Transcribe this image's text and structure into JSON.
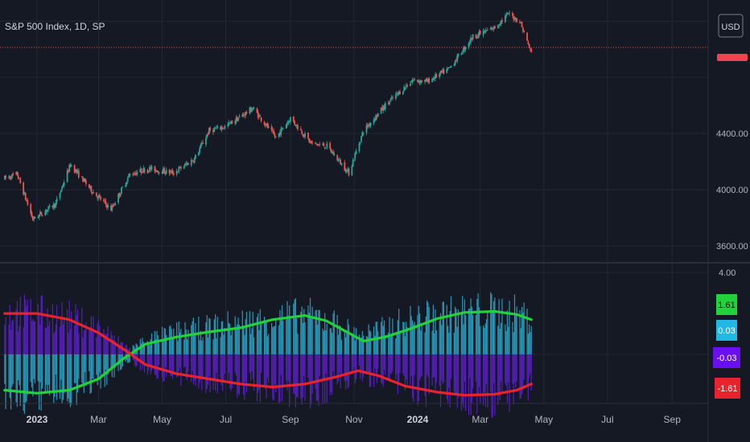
{
  "header": {
    "symbol_title": "S&P 500 Index, 1D, SP"
  },
  "currency_button": "USD",
  "colors": {
    "background": "#151924",
    "grid": "#242833",
    "up": "#26a69a",
    "down": "#ef5350",
    "green_line": "#22d23a",
    "red_line": "#e8232d",
    "cyan_bar": "#2aa6c8",
    "purple_bar": "#5b20c8",
    "axis_text": "#b2b5be"
  },
  "chart_data": [
    {
      "type": "candlestick",
      "title": "S&P 500 Index, 1D, SP",
      "y_tick_labels": [
        "4400.00",
        "4000.00",
        "3600.00"
      ],
      "ylim": [
        3480,
        5350
      ],
      "last_value_marker_color": "#ef5350",
      "close_path": [
        [
          "2022-12-01",
          4080
        ],
        [
          "2022-12-13",
          4110
        ],
        [
          "2022-12-28",
          3790
        ],
        [
          "2023-01-19",
          3900
        ],
        [
          "2023-02-02",
          4180
        ],
        [
          "2023-02-23",
          3990
        ],
        [
          "2023-03-13",
          3860
        ],
        [
          "2023-03-31",
          4110
        ],
        [
          "2023-04-18",
          4150
        ],
        [
          "2023-05-12",
          4120
        ],
        [
          "2023-06-01",
          4220
        ],
        [
          "2023-06-15",
          4420
        ],
        [
          "2023-07-01",
          4450
        ],
        [
          "2023-07-27",
          4580
        ],
        [
          "2023-08-18",
          4370
        ],
        [
          "2023-09-01",
          4510
        ],
        [
          "2023-09-21",
          4330
        ],
        [
          "2023-10-06",
          4310
        ],
        [
          "2023-10-27",
          4120
        ],
        [
          "2023-11-10",
          4420
        ],
        [
          "2023-12-01",
          4600
        ],
        [
          "2023-12-27",
          4780
        ],
        [
          "2024-01-10",
          4770
        ],
        [
          "2024-01-31",
          4860
        ],
        [
          "2024-02-23",
          5090
        ],
        [
          "2024-03-14",
          5150
        ],
        [
          "2024-03-28",
          5250
        ],
        [
          "2024-04-08",
          5200
        ],
        [
          "2024-04-19",
          4970
        ]
      ]
    },
    {
      "type": "indicator",
      "y_tick_labels": [
        "4.00"
      ],
      "ylim": [
        -2.4,
        4.4
      ],
      "legend_values": [
        "1.61",
        "0.03",
        "-0.03",
        "-1.61"
      ],
      "legend_colors": [
        "#22d23a",
        "#22b8e6",
        "#6a10f0",
        "#e8232d"
      ],
      "series": [
        {
          "name": "",
          "color": "#22d23a",
          "points": [
            [
              "2022-12-01",
              -1.75
            ],
            [
              "2023-01-01",
              -1.9
            ],
            [
              "2023-02-01",
              -1.75
            ],
            [
              "2023-03-01",
              -1.2
            ],
            [
              "2023-03-25",
              -0.2
            ],
            [
              "2023-04-15",
              0.5
            ],
            [
              "2023-05-15",
              0.85
            ],
            [
              "2023-06-15",
              1.1
            ],
            [
              "2023-07-15",
              1.3
            ],
            [
              "2023-08-15",
              1.7
            ],
            [
              "2023-09-15",
              1.9
            ],
            [
              "2023-10-05",
              1.65
            ],
            [
              "2023-10-25",
              1.1
            ],
            [
              "2023-11-10",
              0.65
            ],
            [
              "2023-12-01",
              0.85
            ],
            [
              "2023-12-25",
              1.25
            ],
            [
              "2024-01-20",
              1.75
            ],
            [
              "2024-02-15",
              2.05
            ],
            [
              "2024-03-15",
              2.1
            ],
            [
              "2024-04-05",
              1.95
            ],
            [
              "2024-04-19",
              1.7
            ]
          ]
        },
        {
          "name": "",
          "color": "#e8232d",
          "points": [
            [
              "2022-12-01",
              2.0
            ],
            [
              "2023-01-01",
              2.0
            ],
            [
              "2023-02-01",
              1.7
            ],
            [
              "2023-03-01",
              1.05
            ],
            [
              "2023-03-25",
              0.25
            ],
            [
              "2023-04-15",
              -0.5
            ],
            [
              "2023-05-15",
              -0.95
            ],
            [
              "2023-06-15",
              -1.2
            ],
            [
              "2023-07-15",
              -1.45
            ],
            [
              "2023-08-15",
              -1.6
            ],
            [
              "2023-09-15",
              -1.45
            ],
            [
              "2023-10-15",
              -1.1
            ],
            [
              "2023-11-05",
              -0.8
            ],
            [
              "2023-11-25",
              -1.05
            ],
            [
              "2023-12-20",
              -1.55
            ],
            [
              "2024-01-20",
              -1.85
            ],
            [
              "2024-02-15",
              -2.0
            ],
            [
              "2024-03-15",
              -1.95
            ],
            [
              "2024-04-05",
              -1.75
            ],
            [
              "2024-04-19",
              -1.45
            ]
          ]
        }
      ]
    }
  ],
  "x_axis": {
    "ticks": [
      {
        "label": "2023",
        "date": "2023-01-01",
        "bold": true
      },
      {
        "label": "Mar",
        "date": "2023-03-01"
      },
      {
        "label": "May",
        "date": "2023-05-01"
      },
      {
        "label": "Jul",
        "date": "2023-07-01"
      },
      {
        "label": "Sep",
        "date": "2023-09-01"
      },
      {
        "label": "Nov",
        "date": "2023-11-01"
      },
      {
        "label": "2024",
        "date": "2024-01-01",
        "bold": true
      },
      {
        "label": "Mar",
        "date": "2024-03-01"
      },
      {
        "label": "May",
        "date": "2024-05-01"
      },
      {
        "label": "Jul",
        "date": "2024-07-01"
      },
      {
        "label": "Sep",
        "date": "2024-09-01"
      }
    ]
  }
}
